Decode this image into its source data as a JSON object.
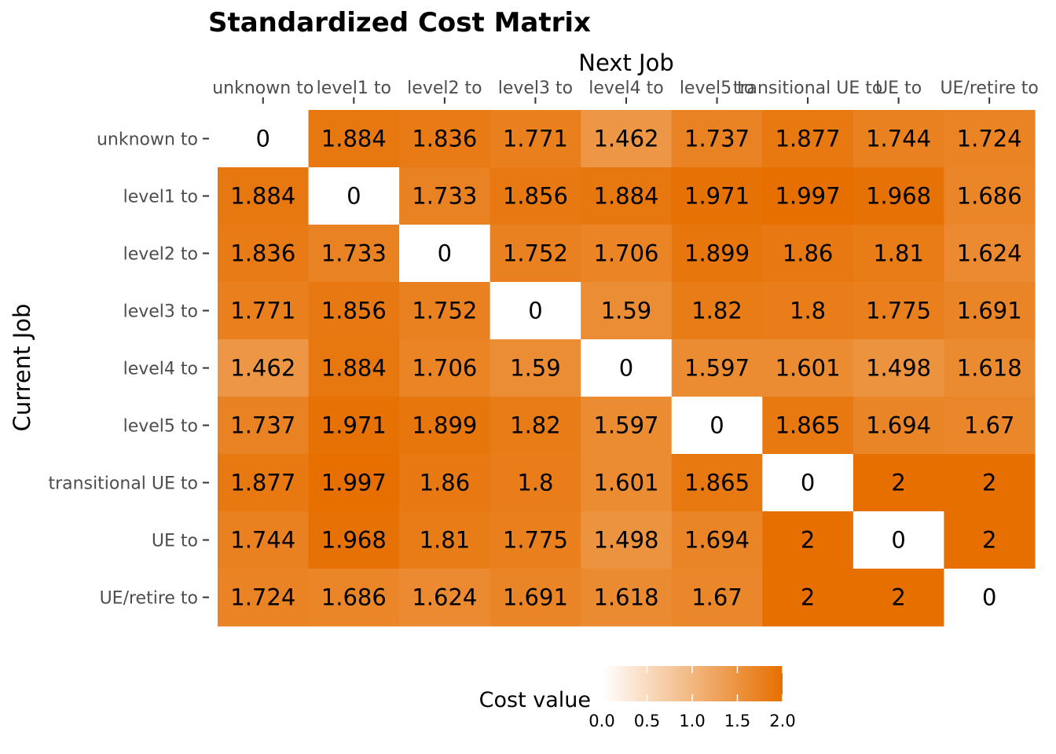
{
  "chart_data": {
    "type": "heatmap",
    "title": "Standardized Cost Matrix",
    "xlabel": "Next Job",
    "ylabel": "Current Job",
    "x_categories": [
      "unknown to",
      "level1 to",
      "level2 to",
      "level3 to",
      "level4 to",
      "level5 to",
      "transitional UE to",
      "UE to",
      "UE/retire to"
    ],
    "y_categories": [
      "unknown to",
      "level1 to",
      "level2 to",
      "level3 to",
      "level4 to",
      "level5 to",
      "transitional UE to",
      "UE to",
      "UE/retire to"
    ],
    "values": [
      [
        0,
        1.884,
        1.836,
        1.771,
        1.462,
        1.737,
        1.877,
        1.744,
        1.724
      ],
      [
        1.884,
        0,
        1.733,
        1.856,
        1.884,
        1.971,
        1.997,
        1.968,
        1.686
      ],
      [
        1.836,
        1.733,
        0,
        1.752,
        1.706,
        1.899,
        1.86,
        1.81,
        1.624
      ],
      [
        1.771,
        1.856,
        1.752,
        0,
        1.59,
        1.82,
        1.8,
        1.775,
        1.691
      ],
      [
        1.462,
        1.884,
        1.706,
        1.59,
        0,
        1.597,
        1.601,
        1.498,
        1.618
      ],
      [
        1.737,
        1.971,
        1.899,
        1.82,
        1.597,
        0,
        1.865,
        1.694,
        1.67
      ],
      [
        1.877,
        1.997,
        1.86,
        1.8,
        1.601,
        1.865,
        0,
        2,
        2
      ],
      [
        1.744,
        1.968,
        1.81,
        1.775,
        1.498,
        1.694,
        2,
        0,
        2
      ],
      [
        1.724,
        1.686,
        1.624,
        1.691,
        1.618,
        1.67,
        2,
        2,
        0
      ]
    ],
    "color_scale": {
      "low": "#ffffff",
      "high": "#e66f00",
      "range": [
        0,
        2
      ]
    },
    "legend": {
      "title": "Cost value",
      "breaks": [
        0,
        0.5,
        1,
        1.5,
        2
      ],
      "labels": [
        "0.0",
        "0.5",
        "1.0",
        "1.5",
        "2.0"
      ],
      "position": "bottom"
    },
    "x_axis_position": "top"
  }
}
